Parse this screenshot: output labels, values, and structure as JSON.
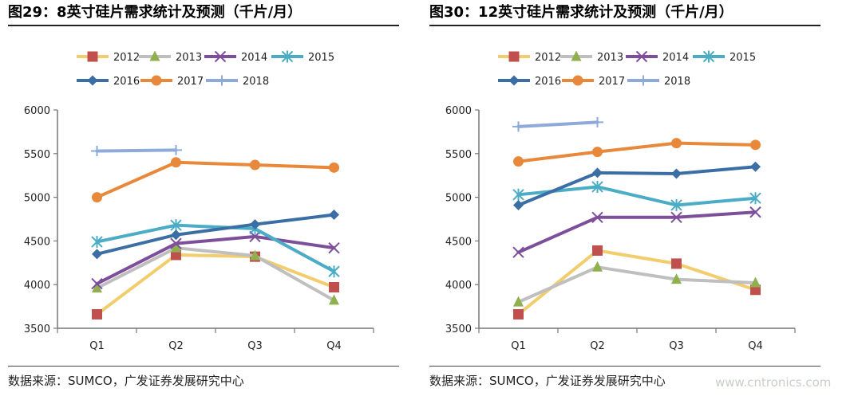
{
  "charts": [
    {
      "title": "图29：8英寸硅片需求统计及预测（千片/月）",
      "source": "数据来源：SUMCO，广发证券发展研究中心"
    },
    {
      "title": "图30：12英寸硅片需求统计及预测（千片/月）",
      "source": "数据来源：SUMCO，广发证券发展研究中心"
    }
  ],
  "watermark": "www.cntronics.com",
  "chart_data": [
    {
      "type": "line",
      "title": "图29：8英寸硅片需求统计及预测（千片/月）",
      "xlabel": "",
      "ylabel": "",
      "categories": [
        "Q1",
        "Q2",
        "Q3",
        "Q4"
      ],
      "ylim": [
        3500,
        6000
      ],
      "yticks": [
        3500,
        4000,
        4500,
        5000,
        5500,
        6000
      ],
      "grid": false,
      "legend": "top",
      "series": [
        {
          "name": "2012",
          "values": [
            3660,
            4340,
            4320,
            3970
          ],
          "color": "#f2cd6e",
          "marker": "square",
          "marker_color": "#c0504d"
        },
        {
          "name": "2013",
          "values": [
            3960,
            4420,
            4330,
            3820
          ],
          "color": "#bfbfbf",
          "marker": "triangle",
          "marker_color": "#8fb04d"
        },
        {
          "name": "2014",
          "values": [
            4010,
            4470,
            4550,
            4420
          ],
          "color": "#7d4f9b",
          "marker": "x",
          "marker_color": "#7d4f9b"
        },
        {
          "name": "2015",
          "values": [
            4490,
            4680,
            4640,
            4150
          ],
          "color": "#4bacc6",
          "marker": "asterisk",
          "marker_color": "#4bacc6"
        },
        {
          "name": "2016",
          "values": [
            4350,
            4570,
            4690,
            4800
          ],
          "color": "#3a6ea5",
          "marker": "diamond",
          "marker_color": "#3a6ea5"
        },
        {
          "name": "2017",
          "values": [
            5000,
            5400,
            5370,
            5340
          ],
          "color": "#e8883a",
          "marker": "circle",
          "marker_color": "#e8883a"
        },
        {
          "name": "2018",
          "values": [
            5530,
            5540,
            null,
            null
          ],
          "color": "#8eaadb",
          "marker": "plus",
          "marker_color": "#8eaadb"
        }
      ]
    },
    {
      "type": "line",
      "title": "图30：12英寸硅片需求统计及预测（千片/月）",
      "xlabel": "",
      "ylabel": "",
      "categories": [
        "Q1",
        "Q2",
        "Q3",
        "Q4"
      ],
      "ylim": [
        3500,
        6000
      ],
      "yticks": [
        3500,
        4000,
        4500,
        5000,
        5500,
        6000
      ],
      "grid": false,
      "legend": "top",
      "series": [
        {
          "name": "2012",
          "values": [
            3660,
            4390,
            4240,
            3940
          ],
          "color": "#f2cd6e",
          "marker": "square",
          "marker_color": "#c0504d"
        },
        {
          "name": "2013",
          "values": [
            3800,
            4200,
            4060,
            4020
          ],
          "color": "#bfbfbf",
          "marker": "triangle",
          "marker_color": "#8fb04d"
        },
        {
          "name": "2014",
          "values": [
            4370,
            4770,
            4770,
            4830
          ],
          "color": "#7d4f9b",
          "marker": "x",
          "marker_color": "#7d4f9b"
        },
        {
          "name": "2015",
          "values": [
            5030,
            5120,
            4910,
            4990
          ],
          "color": "#4bacc6",
          "marker": "asterisk",
          "marker_color": "#4bacc6"
        },
        {
          "name": "2016",
          "values": [
            4910,
            5280,
            5270,
            5350
          ],
          "color": "#3a6ea5",
          "marker": "diamond",
          "marker_color": "#3a6ea5"
        },
        {
          "name": "2017",
          "values": [
            5410,
            5520,
            5620,
            5600
          ],
          "color": "#e8883a",
          "marker": "circle",
          "marker_color": "#e8883a"
        },
        {
          "name": "2018",
          "values": [
            5810,
            5860,
            null,
            null
          ],
          "color": "#8eaadb",
          "marker": "plus",
          "marker_color": "#8eaadb"
        }
      ]
    }
  ]
}
